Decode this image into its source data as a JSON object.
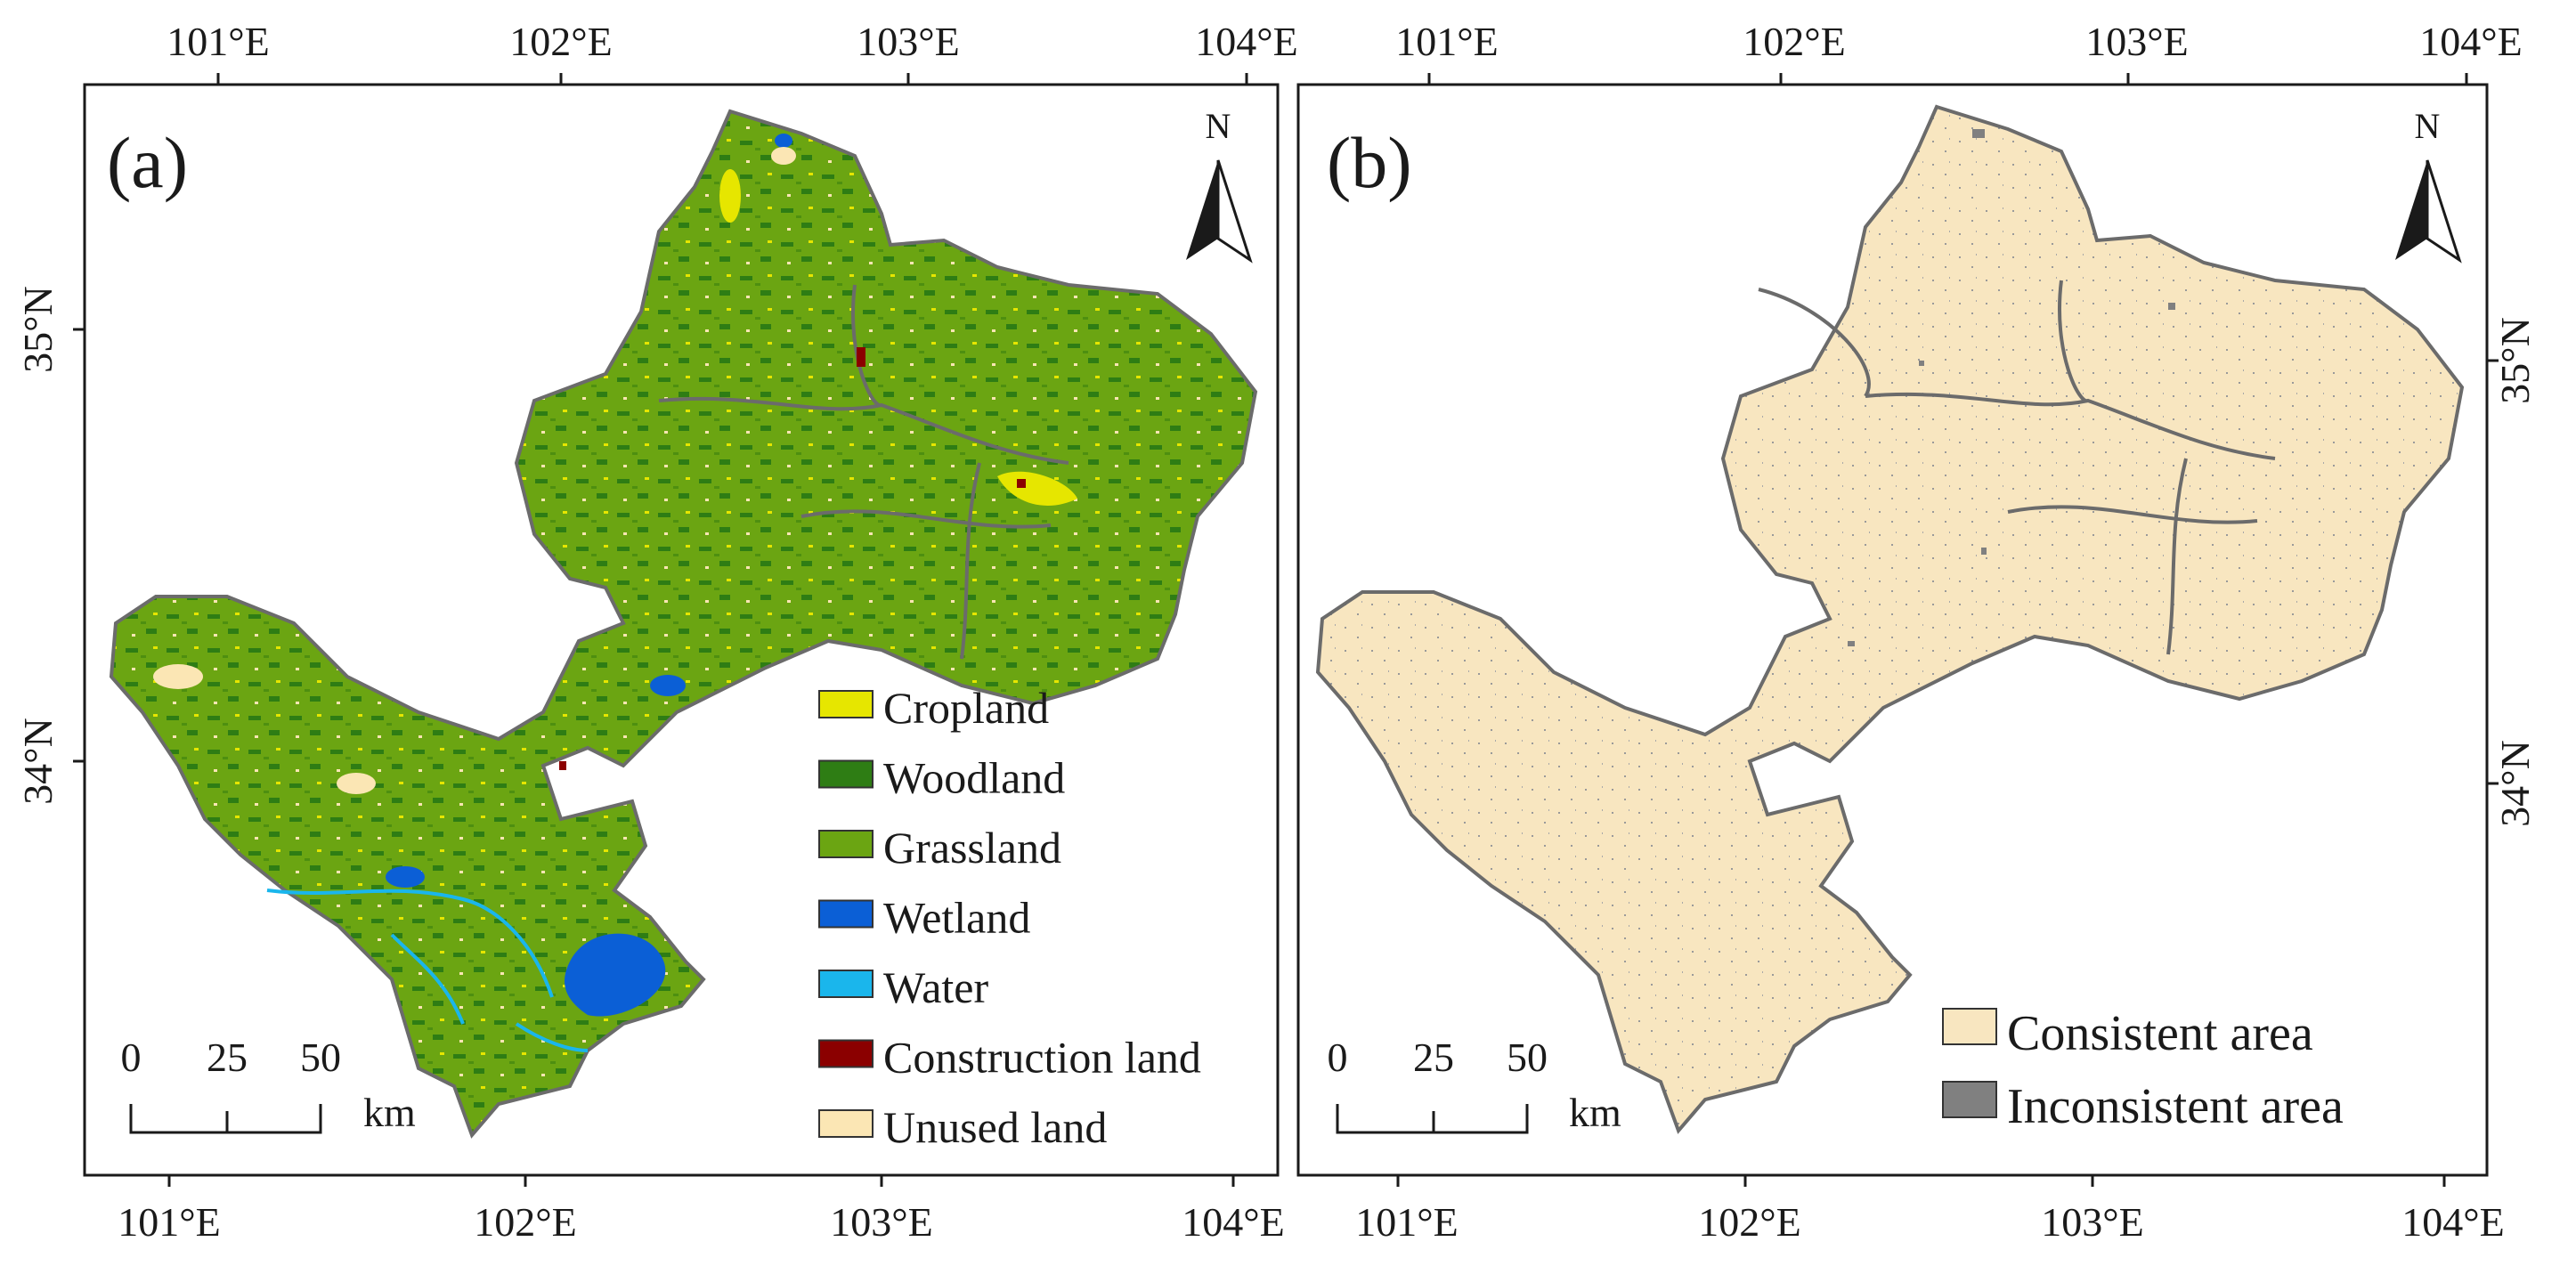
{
  "panels": [
    {
      "label": "(a)",
      "x_ticks": [
        "101°E",
        "102°E",
        "103°E",
        "104°E"
      ],
      "y_ticks": [
        "35°N",
        "34°N"
      ],
      "north": "N",
      "scale": {
        "ticks": [
          "0",
          "25",
          "50"
        ],
        "unit": "km"
      },
      "legend": [
        {
          "label": "Cropland",
          "color": "#e6e600"
        },
        {
          "label": "Woodland",
          "color": "#2e7d14"
        },
        {
          "label": "Grassland",
          "color": "#6ba512"
        },
        {
          "label": "Wetland",
          "color": "#0b5fd6"
        },
        {
          "label": "Water",
          "color": "#1ab6ec"
        },
        {
          "label": "Construction land",
          "color": "#8b0000"
        },
        {
          "label": "Unused land",
          "color": "#fbe6b4"
        }
      ]
    },
    {
      "label": "(b)",
      "x_ticks": [
        "101°E",
        "102°E",
        "103°E",
        "104°E"
      ],
      "y_ticks": [
        "35°N",
        "34°N"
      ],
      "north": "N",
      "scale": {
        "ticks": [
          "0",
          "25",
          "50"
        ],
        "unit": "km"
      },
      "legend": [
        {
          "label": "Consistent area",
          "color": "#f8e6c0"
        },
        {
          "label": "Inconsistent area",
          "color": "#808080"
        }
      ]
    }
  ],
  "colors": {
    "boundary": "#6b6b6b",
    "frame": "#1a1a1a",
    "region_a": "#6ba512",
    "region_b": "#f8e6c0"
  }
}
